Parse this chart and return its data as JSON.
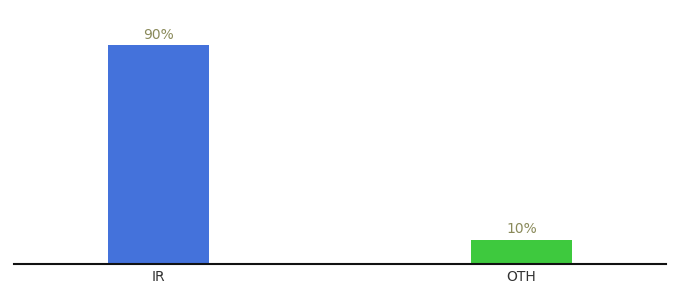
{
  "categories": [
    "IR",
    "OTH"
  ],
  "values": [
    90,
    10
  ],
  "bar_colors": [
    "#4472db",
    "#3ec93e"
  ],
  "label_texts": [
    "90%",
    "10%"
  ],
  "label_color": "#8a8a5a",
  "ylim": [
    0,
    100
  ],
  "background_color": "#ffffff",
  "bar_width": 0.28,
  "tick_fontsize": 10,
  "label_fontsize": 10,
  "spine_color": "#111111",
  "x_positions": [
    1,
    2
  ]
}
